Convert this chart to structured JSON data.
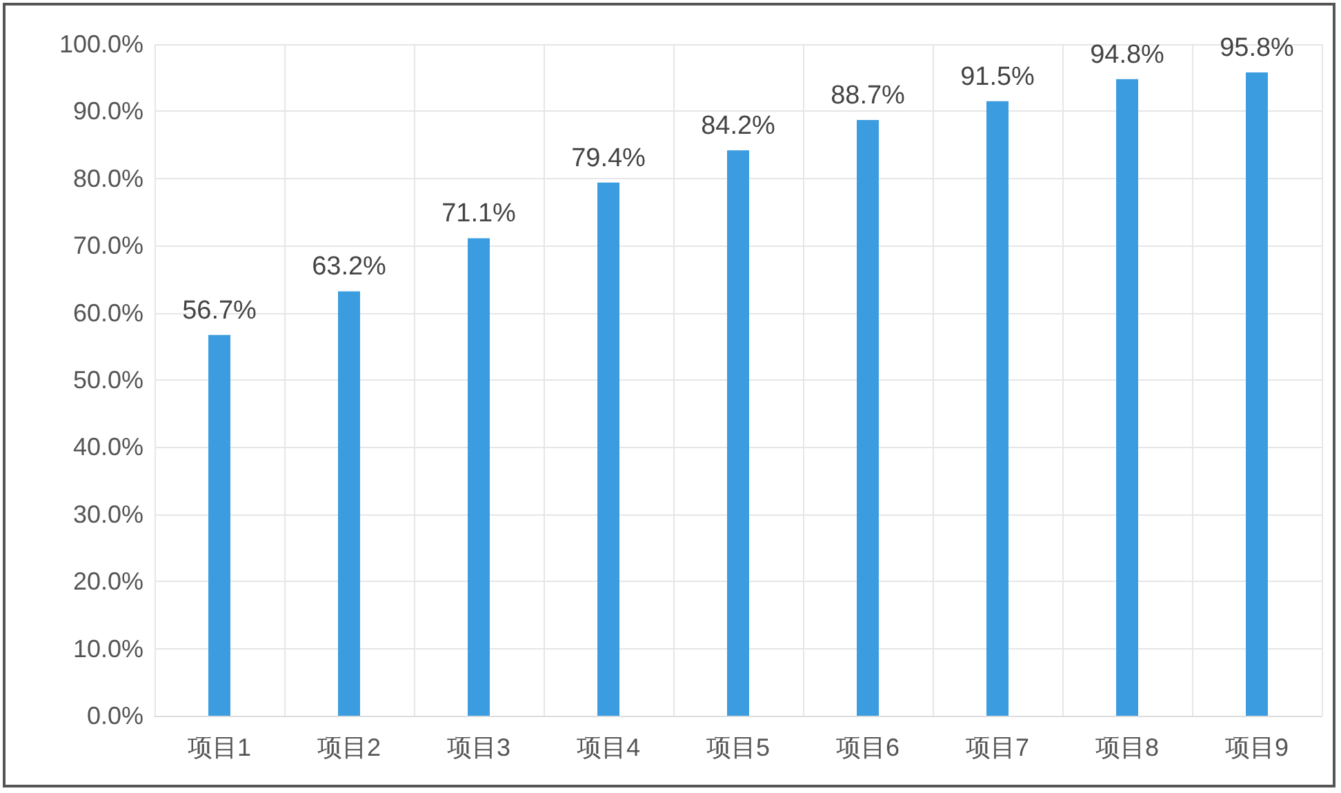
{
  "chart_data": {
    "type": "bar",
    "categories": [
      "项目1",
      "项目2",
      "项目3",
      "项目4",
      "项目5",
      "项目6",
      "项目7",
      "项目8",
      "项目9"
    ],
    "values": [
      56.7,
      63.2,
      71.1,
      79.4,
      84.2,
      88.7,
      91.5,
      94.8,
      95.8
    ],
    "value_labels": [
      "56.7%",
      "63.2%",
      "71.1%",
      "79.4%",
      "84.2%",
      "88.7%",
      "91.5%",
      "94.8%",
      "95.8%"
    ],
    "color": "#3b9ddf",
    "ylim": [
      0,
      100
    ],
    "yticks": [
      {
        "value": 0,
        "label": "0.0%"
      },
      {
        "value": 10,
        "label": "10.0%"
      },
      {
        "value": 20,
        "label": "20.0%"
      },
      {
        "value": 30,
        "label": "30.0%"
      },
      {
        "value": 40,
        "label": "40.0%"
      },
      {
        "value": 50,
        "label": "50.0%"
      },
      {
        "value": 60,
        "label": "60.0%"
      },
      {
        "value": 70,
        "label": "70.0%"
      },
      {
        "value": 80,
        "label": "80.0%"
      },
      {
        "value": 90,
        "label": "90.0%"
      },
      {
        "value": 100,
        "label": "100.0%"
      }
    ],
    "grid": true
  }
}
